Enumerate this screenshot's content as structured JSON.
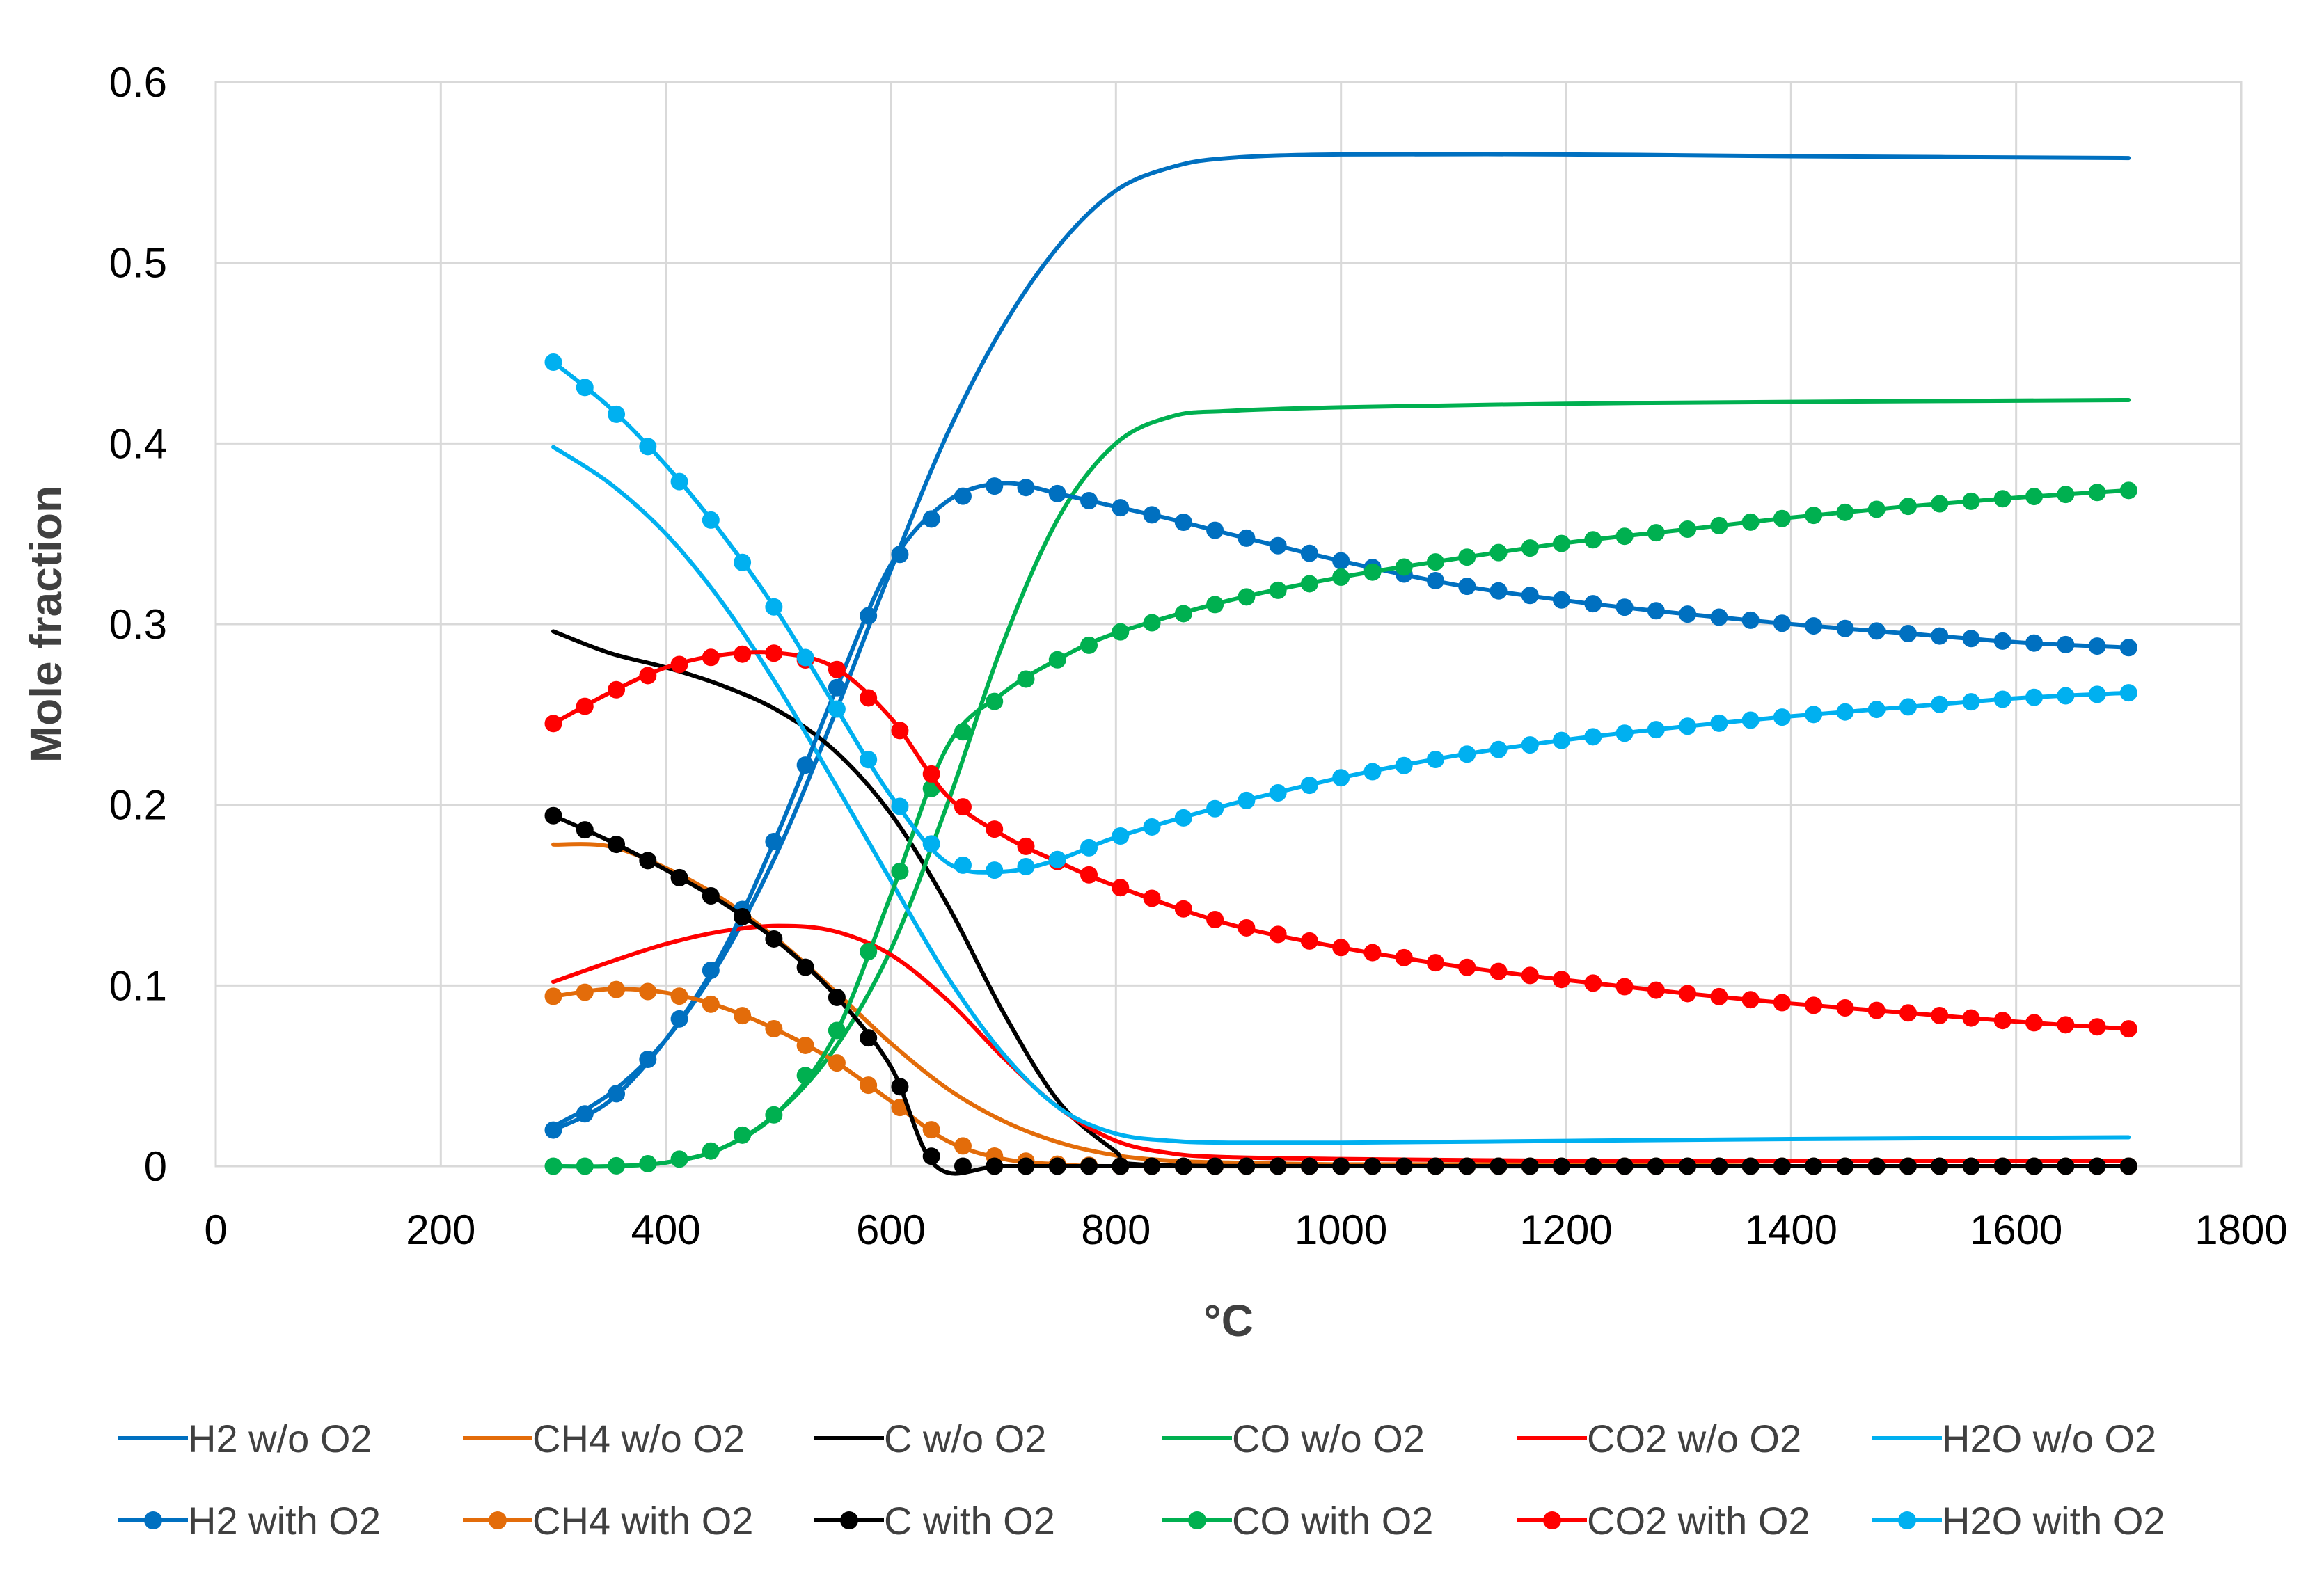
{
  "chart_data": {
    "type": "line",
    "title": "",
    "xlabel": "°C",
    "ylabel": "Mole fraction",
    "xlim": [
      0,
      1800
    ],
    "ylim": [
      0,
      0.6
    ],
    "x_ticks": [
      0,
      200,
      400,
      600,
      800,
      1000,
      1200,
      1400,
      1600,
      1800
    ],
    "x_tick_labels": [
      "0",
      "200",
      "400",
      "600",
      "800",
      "1000",
      "1200",
      "1400",
      "1600",
      "1800"
    ],
    "y_ticks": [
      0,
      0.1,
      0.2,
      0.3,
      0.4,
      0.5,
      0.6
    ],
    "y_tick_labels": [
      "0",
      "0.1",
      "0.2",
      "0.3",
      "0.4",
      "0.5",
      "0.6"
    ],
    "grid": true,
    "legend_position": "bottom",
    "series": [
      {
        "name": "H2 w/o O2",
        "color": "#0070C0",
        "markers": false,
        "x": [
          300,
          350,
          400,
          450,
          500,
          550,
          600,
          650,
          700,
          750,
          800,
          850,
          900,
          1000,
          1200,
          1400,
          1700
        ],
        "y": [
          0.022,
          0.04,
          0.07,
          0.115,
          0.175,
          0.25,
          0.33,
          0.405,
          0.465,
          0.51,
          0.54,
          0.553,
          0.558,
          0.56,
          0.56,
          0.559,
          0.558
        ]
      },
      {
        "name": "CH4 w/o O2",
        "color": "#E36C0A",
        "markers": false,
        "x": [
          300,
          350,
          400,
          450,
          500,
          550,
          600,
          650,
          700,
          750,
          800,
          850,
          900,
          1000,
          1200,
          1400,
          1700
        ],
        "y": [
          0.178,
          0.177,
          0.165,
          0.148,
          0.125,
          0.097,
          0.068,
          0.043,
          0.025,
          0.013,
          0.006,
          0.003,
          0.002,
          0.001,
          0.001,
          0.0,
          0.0
        ]
      },
      {
        "name": "C w/o O2",
        "color": "#000000",
        "markers": false,
        "x": [
          300,
          350,
          400,
          450,
          500,
          550,
          600,
          650,
          700,
          750,
          800,
          820,
          1000,
          1200,
          1400,
          1700
        ],
        "y": [
          0.296,
          0.284,
          0.276,
          0.266,
          0.252,
          0.23,
          0.195,
          0.145,
          0.085,
          0.035,
          0.008,
          0.001,
          0.0,
          0.0,
          0.0,
          0.0
        ]
      },
      {
        "name": "CO w/o O2",
        "color": "#00B050",
        "markers": false,
        "x": [
          300,
          350,
          400,
          450,
          500,
          550,
          600,
          650,
          700,
          750,
          800,
          850,
          900,
          1000,
          1200,
          1400,
          1700
        ],
        "y": [
          0.0,
          0.0,
          0.002,
          0.01,
          0.03,
          0.065,
          0.12,
          0.2,
          0.29,
          0.36,
          0.4,
          0.415,
          0.418,
          0.42,
          0.422,
          0.423,
          0.424
        ]
      },
      {
        "name": "CO2 w/o O2",
        "color": "#FF0000",
        "markers": false,
        "x": [
          300,
          350,
          400,
          450,
          500,
          550,
          600,
          650,
          700,
          750,
          800,
          850,
          900,
          1000,
          1200,
          1400,
          1700
        ],
        "y": [
          0.102,
          0.113,
          0.123,
          0.13,
          0.133,
          0.13,
          0.117,
          0.092,
          0.06,
          0.032,
          0.014,
          0.007,
          0.005,
          0.004,
          0.003,
          0.003,
          0.003
        ]
      },
      {
        "name": "H2O w/o O2",
        "color": "#00B0F0",
        "markers": false,
        "x": [
          300,
          350,
          400,
          450,
          500,
          550,
          600,
          650,
          700,
          750,
          800,
          850,
          900,
          1000,
          1200,
          1400,
          1700
        ],
        "y": [
          0.398,
          0.378,
          0.35,
          0.312,
          0.265,
          0.212,
          0.158,
          0.105,
          0.062,
          0.032,
          0.018,
          0.014,
          0.013,
          0.013,
          0.014,
          0.015,
          0.016
        ]
      },
      {
        "name": "H2 with O2",
        "color": "#0070C0",
        "markers": true,
        "x": [
          300,
          350,
          400,
          450,
          500,
          550,
          600,
          650,
          700,
          750,
          800,
          850,
          900,
          1000,
          1100,
          1200,
          1300,
          1400,
          1500,
          1600,
          1700
        ],
        "y": [
          0.02,
          0.036,
          0.07,
          0.118,
          0.185,
          0.262,
          0.333,
          0.368,
          0.378,
          0.372,
          0.365,
          0.358,
          0.35,
          0.335,
          0.322,
          0.313,
          0.306,
          0.3,
          0.295,
          0.29,
          0.287
        ]
      },
      {
        "name": "CH4 with O2",
        "color": "#E36C0A",
        "markers": true,
        "x": [
          300,
          350,
          400,
          450,
          500,
          550,
          600,
          650,
          700,
          750,
          800,
          1000,
          1200,
          1400,
          1700
        ],
        "y": [
          0.094,
          0.098,
          0.096,
          0.088,
          0.075,
          0.058,
          0.036,
          0.014,
          0.004,
          0.001,
          0.0,
          0.0,
          0.0,
          0.0,
          0.0
        ]
      },
      {
        "name": "C with O2",
        "color": "#000000",
        "markers": true,
        "x": [
          300,
          350,
          400,
          450,
          500,
          550,
          600,
          640,
          700,
          800,
          1000,
          1200,
          1400,
          1700
        ],
        "y": [
          0.194,
          0.18,
          0.164,
          0.146,
          0.124,
          0.095,
          0.055,
          0.0,
          0.0,
          0.0,
          0.0,
          0.0,
          0.0,
          0.0
        ]
      },
      {
        "name": "CO with O2",
        "color": "#00B050",
        "markers": true,
        "x": [
          300,
          350,
          400,
          450,
          500,
          550,
          600,
          650,
          700,
          750,
          800,
          900,
          1000,
          1100,
          1200,
          1300,
          1400,
          1500,
          1600,
          1700
        ],
        "y": [
          0.0,
          0.0,
          0.002,
          0.01,
          0.03,
          0.072,
          0.15,
          0.232,
          0.262,
          0.281,
          0.295,
          0.313,
          0.326,
          0.336,
          0.345,
          0.352,
          0.359,
          0.365,
          0.37,
          0.374
        ]
      },
      {
        "name": "CO2 with O2",
        "color": "#FF0000",
        "markers": true,
        "x": [
          300,
          350,
          400,
          450,
          500,
          550,
          600,
          650,
          700,
          750,
          800,
          900,
          1000,
          1100,
          1200,
          1300,
          1400,
          1500,
          1600,
          1700
        ],
        "y": [
          0.245,
          0.262,
          0.276,
          0.283,
          0.284,
          0.276,
          0.248,
          0.205,
          0.183,
          0.168,
          0.155,
          0.134,
          0.121,
          0.111,
          0.103,
          0.096,
          0.09,
          0.085,
          0.08,
          0.076
        ]
      },
      {
        "name": "H2O with O2",
        "color": "#00B0F0",
        "markers": true,
        "x": [
          300,
          350,
          400,
          450,
          500,
          550,
          600,
          650,
          700,
          750,
          800,
          900,
          1000,
          1100,
          1200,
          1300,
          1400,
          1500,
          1600,
          1700
        ],
        "y": [
          0.445,
          0.42,
          0.388,
          0.35,
          0.306,
          0.255,
          0.205,
          0.168,
          0.163,
          0.17,
          0.182,
          0.2,
          0.215,
          0.227,
          0.236,
          0.243,
          0.249,
          0.254,
          0.259,
          0.262
        ]
      }
    ]
  }
}
